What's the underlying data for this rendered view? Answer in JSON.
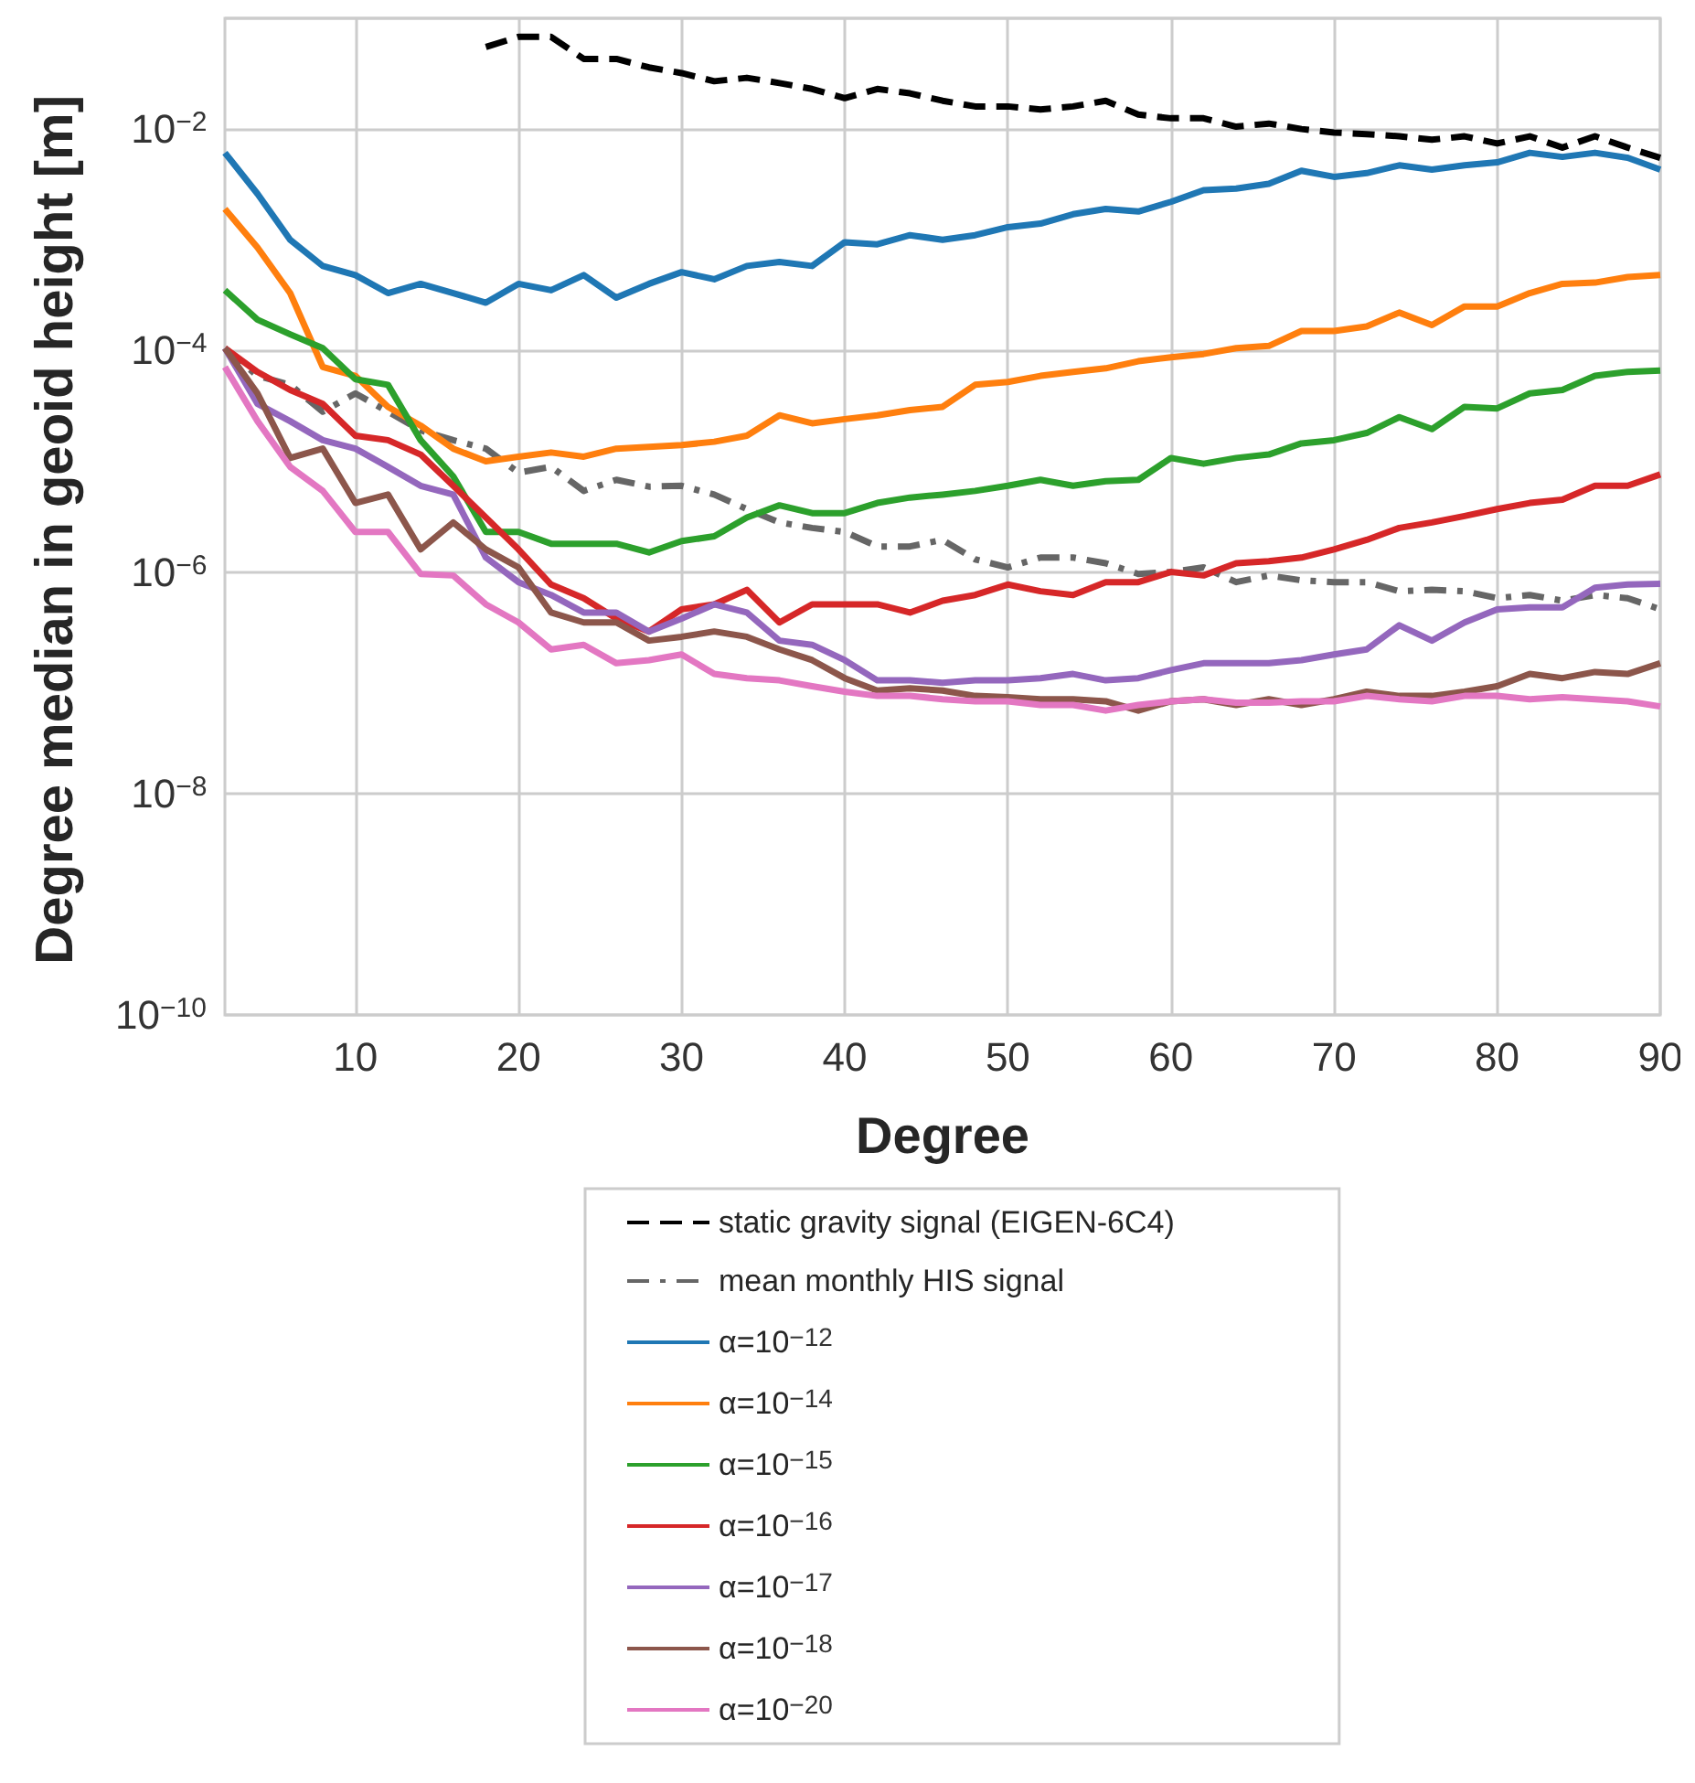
{
  "chart_data": {
    "type": "line",
    "xlabel": "Degree",
    "ylabel": "Degree median in geoid height [m]",
    "log": "y",
    "grid": true,
    "legend": "bottom",
    "xlim": [
      2,
      90
    ],
    "xticks": [
      10,
      20,
      30,
      40,
      50,
      60,
      70,
      80,
      90
    ],
    "ylim": [
      1e-10,
      0.1
    ],
    "yticks": [
      {
        "value": 1e-10,
        "label": "10$^{−10}$"
      },
      {
        "value": 1e-08,
        "label": "10$^{−8}$"
      },
      {
        "value": 1e-06,
        "label": "10$^{−6}$"
      },
      {
        "value": 0.0001,
        "label": "10$^{−4}$"
      },
      {
        "value": 0.01,
        "label": "10$^{−2}$"
      }
    ],
    "x": [
      2,
      4,
      6,
      8,
      10,
      12,
      14,
      16,
      18,
      20,
      22,
      24,
      26,
      28,
      30,
      32,
      34,
      36,
      38,
      40,
      42,
      44,
      46,
      48,
      50,
      52,
      54,
      56,
      58,
      60,
      62,
      64,
      66,
      68,
      70,
      72,
      74,
      76,
      78,
      80,
      82,
      84,
      86,
      88,
      90
    ],
    "series": [
      {
        "name": "static gravity signal (EIGEN-6C4)",
        "color": "#000000",
        "line_style": "dashed",
        "values": [
          null,
          null,
          null,
          null,
          null,
          null,
          null,
          null,
          0.055,
          0.068,
          0.068,
          0.043,
          0.043,
          0.036,
          0.032,
          0.027,
          0.029,
          0.026,
          0.023,
          0.019,
          0.023,
          0.021,
          0.018,
          0.016,
          0.016,
          0.015,
          0.016,
          0.018,
          0.0135,
          0.0125,
          0.0125,
          0.0105,
          0.0112,
          0.01,
          0.0093,
          0.009,
          0.0086,
          0.008,
          0.0086,
          0.0074,
          0.0086,
          0.0068,
          0.0086,
          0.0068,
          0.0055
        ]
      },
      {
        "name": "mean monthly HIS signal",
        "color": "#666666",
        "line_style": "dashdot",
        "values": [
          0.000105,
          5.9e-05,
          4.9e-05,
          2.8e-05,
          4.1e-05,
          2.8e-05,
          1.9e-05,
          1.55e-05,
          1.3e-05,
          7.9e-06,
          8.9e-06,
          5.4e-06,
          6.8e-06,
          5.9e-06,
          6e-06,
          5e-06,
          3.7e-06,
          2.8e-06,
          2.5e-06,
          2.3e-06,
          1.7e-06,
          1.7e-06,
          1.95e-06,
          1.3e-06,
          1.1e-06,
          1.35e-06,
          1.35e-06,
          1.2e-06,
          9.6e-07,
          1e-06,
          1.1e-06,
          8.1e-07,
          9.3e-07,
          8.4e-07,
          8.1e-07,
          8.1e-07,
          6.7e-07,
          6.9e-07,
          6.7e-07,
          5.8e-07,
          6.2e-07,
          5.5e-07,
          6.2e-07,
          5.8e-07,
          4.6e-07
        ]
      },
      {
        "name": "α=10$^{−12}$",
        "color": "#1f77b4",
        "values": [
          0.0061,
          0.0026,
          0.001,
          0.00058,
          0.00048,
          0.00033,
          0.0004,
          0.00033,
          0.00027,
          0.0004,
          0.00035,
          0.00048,
          0.0003,
          0.0004,
          0.00051,
          0.00044,
          0.00058,
          0.00063,
          0.00058,
          0.00095,
          0.00091,
          0.0011,
          0.001,
          0.0011,
          0.0013,
          0.0014,
          0.0017,
          0.0019,
          0.0018,
          0.0022,
          0.0028,
          0.0029,
          0.0032,
          0.0042,
          0.0037,
          0.004,
          0.0047,
          0.0043,
          0.0047,
          0.005,
          0.0061,
          0.0056,
          0.0061,
          0.0055,
          0.0043
        ]
      },
      {
        "name": "α=10$^{−14}$",
        "color": "#ff7f0e",
        "values": [
          0.0019,
          0.00085,
          0.00033,
          7.1e-05,
          5.9e-05,
          3.1e-05,
          2.1e-05,
          1.3e-05,
          1e-05,
          1.1e-05,
          1.2e-05,
          1.1e-05,
          1.3e-05,
          1.35e-05,
          1.4e-05,
          1.5e-05,
          1.7e-05,
          2.6e-05,
          2.2e-05,
          2.4e-05,
          2.6e-05,
          2.9e-05,
          3.1e-05,
          4.9e-05,
          5.2e-05,
          5.9e-05,
          6.4e-05,
          6.9e-05,
          8e-05,
          8.7e-05,
          9.3e-05,
          0.000105,
          0.00011,
          0.00015,
          0.00015,
          0.000165,
          0.00022,
          0.00017,
          0.00025,
          0.00025,
          0.00033,
          0.0004,
          0.00041,
          0.00046,
          0.00048
        ]
      },
      {
        "name": "α=10$^{−15}$",
        "color": "#2ca02c",
        "values": [
          0.00035,
          0.00019,
          0.00014,
          0.000105,
          5.5e-05,
          4.9e-05,
          1.55e-05,
          7.3e-06,
          2.3e-06,
          2.3e-06,
          1.8e-06,
          1.8e-06,
          1.8e-06,
          1.5e-06,
          1.9e-06,
          2.1e-06,
          3.1e-06,
          4e-06,
          3.4e-06,
          3.4e-06,
          4.2e-06,
          4.7e-06,
          5e-06,
          5.4e-06,
          6e-06,
          6.8e-06,
          6e-06,
          6.6e-06,
          6.8e-06,
          1.07e-05,
          9.5e-06,
          1.07e-05,
          1.15e-05,
          1.45e-05,
          1.55e-05,
          1.8e-05,
          2.5e-05,
          1.95e-05,
          3.1e-05,
          3e-05,
          4.1e-05,
          4.4e-05,
          5.9e-05,
          6.4e-05,
          6.6e-05
        ]
      },
      {
        "name": "α=10$^{−16}$",
        "color": "#d62728",
        "values": [
          0.000105,
          6.4e-05,
          4.4e-05,
          3.3e-05,
          1.7e-05,
          1.55e-05,
          1.15e-05,
          6e-06,
          3.1e-06,
          1.6e-06,
          7.7e-07,
          5.8e-07,
          3.8e-07,
          2.9e-07,
          4.6e-07,
          5.1e-07,
          6.9e-07,
          3.5e-07,
          5.1e-07,
          5.1e-07,
          5.1e-07,
          4.3e-07,
          5.5e-07,
          6.2e-07,
          7.7e-07,
          6.7e-07,
          6.2e-07,
          8.1e-07,
          8.1e-07,
          1e-06,
          9.3e-07,
          1.2e-06,
          1.25e-06,
          1.35e-06,
          1.6e-06,
          1.95e-06,
          2.5e-06,
          2.8e-06,
          3.2e-06,
          3.7e-06,
          4.2e-06,
          4.5e-06,
          6e-06,
          6e-06,
          7.6e-06
        ]
      },
      {
        "name": "α=10$^{−17}$",
        "color": "#9467bd",
        "values": [
          0.000105,
          3.3e-05,
          2.3e-05,
          1.55e-05,
          1.3e-05,
          8.9e-06,
          6e-06,
          5e-06,
          1.35e-06,
          8.1e-07,
          6.2e-07,
          4.3e-07,
          4.3e-07,
          2.9e-07,
          3.8e-07,
          5.1e-07,
          4.3e-07,
          2.4e-07,
          2.2e-07,
          1.6e-07,
          1.05e-07,
          1.05e-07,
          1e-07,
          1.05e-07,
          1.05e-07,
          1.1e-07,
          1.2e-07,
          1.05e-07,
          1.1e-07,
          1.3e-07,
          1.5e-07,
          1.5e-07,
          1.5e-07,
          1.6e-07,
          1.8e-07,
          2e-07,
          3.3e-07,
          2.4e-07,
          3.5e-07,
          4.6e-07,
          4.8e-07,
          4.8e-07,
          7.2e-07,
          7.7e-07,
          7.8e-07
        ]
      },
      {
        "name": "α=10$^{−18}$",
        "color": "#8c564b",
        "values": [
          0.000105,
          4.1e-05,
          1.07e-05,
          1.3e-05,
          4.2e-06,
          5e-06,
          1.6e-06,
          2.8e-06,
          1.6e-06,
          1.1e-06,
          4.3e-07,
          3.5e-07,
          3.5e-07,
          2.4e-07,
          2.6e-07,
          2.9e-07,
          2.6e-07,
          2e-07,
          1.6e-07,
          1.1e-07,
          8.5e-08,
          8.9e-08,
          8.5e-08,
          7.6e-08,
          7.4e-08,
          7.1e-08,
          7.1e-08,
          6.8e-08,
          5.6e-08,
          6.8e-08,
          7.1e-08,
          6.3e-08,
          7.1e-08,
          6.3e-08,
          7.1e-08,
          8.3e-08,
          7.6e-08,
          7.6e-08,
          8.3e-08,
          9.3e-08,
          1.2e-07,
          1.1e-07,
          1.25e-07,
          1.2e-07,
          1.5e-07
        ]
      },
      {
        "name": "α=10$^{−20}$",
        "color": "#e377c2",
        "values": [
          7.1e-05,
          2.3e-05,
          8.9e-06,
          5.4e-06,
          2.3e-06,
          2.3e-06,
          9.6e-07,
          9.3e-07,
          5.1e-07,
          3.5e-07,
          2e-07,
          2.2e-07,
          1.5e-07,
          1.6e-07,
          1.8e-07,
          1.2e-07,
          1.1e-07,
          1.05e-07,
          9.3e-08,
          8.3e-08,
          7.6e-08,
          7.6e-08,
          7.1e-08,
          6.8e-08,
          6.8e-08,
          6.3e-08,
          6.3e-08,
          5.6e-08,
          6.3e-08,
          6.8e-08,
          7.1e-08,
          6.6e-08,
          6.6e-08,
          6.8e-08,
          6.8e-08,
          7.6e-08,
          7.1e-08,
          6.8e-08,
          7.6e-08,
          7.6e-08,
          7.1e-08,
          7.4e-08,
          7.1e-08,
          6.8e-08,
          6.1e-08
        ]
      }
    ]
  }
}
